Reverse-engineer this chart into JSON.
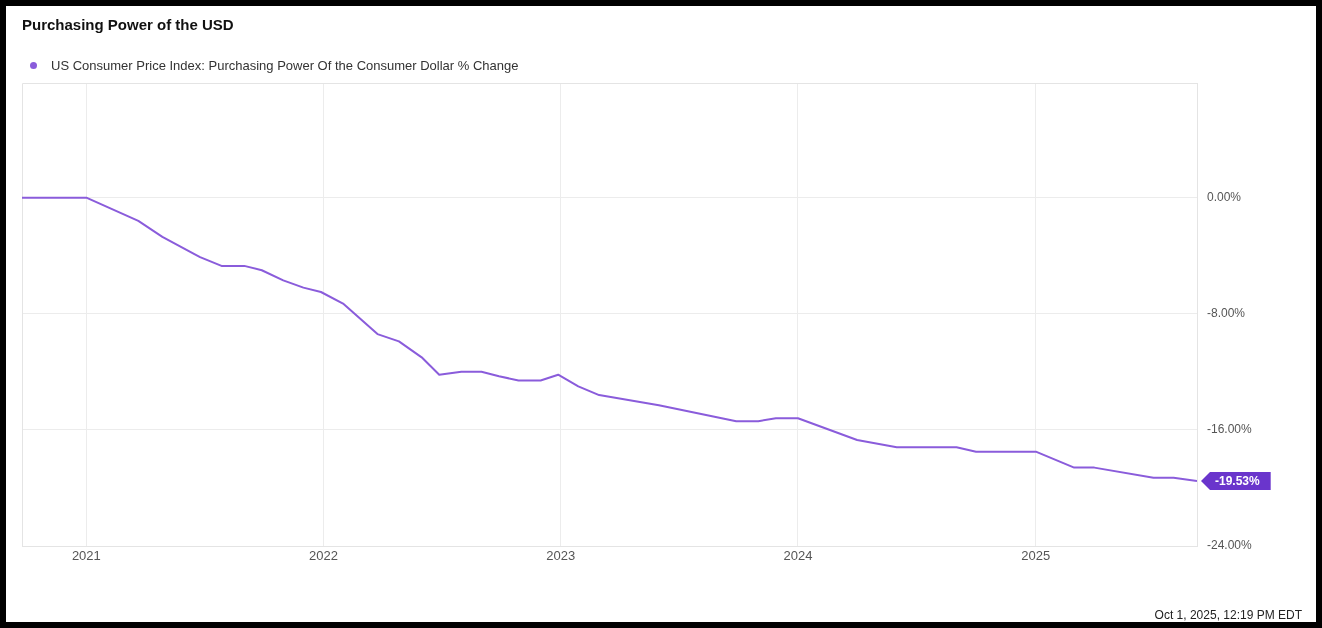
{
  "chart_data": {
    "type": "line",
    "title": "Purchasing Power of the USD",
    "x": [
      "2020-09-24",
      "2021-01-01",
      "2021-03-22",
      "2021-04-28",
      "2021-06-25",
      "2021-07-28",
      "2021-09-01",
      "2021-09-28",
      "2021-10-31",
      "2021-12-01",
      "2021-12-28",
      "2022-01-31",
      "2022-03-25",
      "2022-04-27",
      "2022-06-01",
      "2022-06-28",
      "2022-08-01",
      "2022-09-01",
      "2022-09-28",
      "2022-10-28",
      "2022-12-01",
      "2022-12-28",
      "2023-01-28",
      "2023-03-01",
      "2023-06-01",
      "2023-09-28",
      "2023-11-01",
      "2023-11-28",
      "2024-01-01",
      "2024-04-01",
      "2024-06-01",
      "2024-09-01",
      "2024-10-01",
      "2025-01-01",
      "2025-03-01",
      "2025-04-01",
      "2025-07-01",
      "2025-08-01",
      "2025-09-06"
    ],
    "series": [
      {
        "name": "US Consumer Price Index: Purchasing Power Of the Consumer Dollar % Change",
        "color": "#8a5cdb",
        "values": [
          0,
          0,
          -1.6,
          -2.7,
          -4.1,
          -4.7,
          -4.7,
          -5.0,
          -5.7,
          -6.2,
          -6.5,
          -7.3,
          -9.4,
          -9.9,
          -11.0,
          -12.2,
          -12.0,
          -12.0,
          -12.3,
          -12.6,
          -12.6,
          -12.2,
          -13.0,
          -13.6,
          -14.3,
          -15.4,
          -15.4,
          -15.2,
          -15.2,
          -16.7,
          -17.2,
          -17.2,
          -17.5,
          -17.5,
          -18.6,
          -18.6,
          -19.3,
          -19.3,
          -19.53
        ],
        "value_labels": [
          null,
          null,
          null,
          null,
          null,
          null,
          null,
          null,
          null,
          null,
          null,
          null,
          null,
          null,
          null,
          null,
          null,
          null,
          null,
          null,
          null,
          null,
          null,
          null,
          null,
          null,
          null,
          null,
          null,
          null,
          null,
          null,
          null,
          null,
          null,
          null,
          null,
          null,
          "-19.53%"
        ]
      }
    ],
    "xlim": [
      "2020-09-24",
      "2025-09-06"
    ],
    "xticks": [
      {
        "value": "2021-01-01",
        "label": "2021"
      },
      {
        "value": "2022-01-01",
        "label": "2022"
      },
      {
        "value": "2023-01-01",
        "label": "2023"
      },
      {
        "value": "2024-01-01",
        "label": "2024"
      },
      {
        "value": "2025-01-01",
        "label": "2025"
      }
    ],
    "ylim": [
      -24,
      7.9
    ],
    "yticks": [
      {
        "value": 0,
        "label": "0.00%"
      },
      {
        "value": -8,
        "label": "-8.00%"
      },
      {
        "value": -16,
        "label": "-16.00%"
      },
      {
        "value": -24,
        "label": "-24.00%"
      }
    ],
    "grid": true,
    "legend": "top left",
    "marker": "none",
    "line_style": "solid",
    "annotations": [
      "Oct 1, 2025, 12:19 PM EDT"
    ]
  }
}
